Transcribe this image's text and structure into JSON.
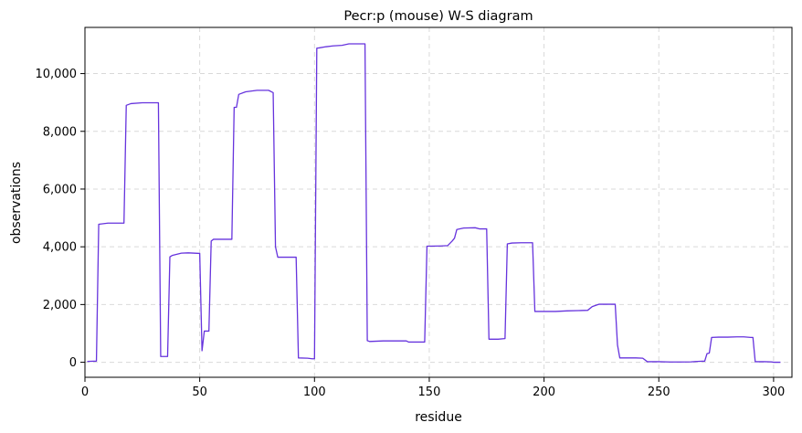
{
  "chart_data": {
    "type": "line",
    "title": "Pecr:p (mouse) W-S diagram",
    "xlabel": "residue",
    "ylabel": "observations",
    "xlim": [
      0,
      308
    ],
    "ylim": [
      -520,
      11600
    ],
    "xticks": [
      0,
      50,
      100,
      150,
      200,
      250,
      300
    ],
    "yticks": [
      0,
      2000,
      4000,
      6000,
      8000,
      10000
    ],
    "xtick_labels": [
      "0",
      "50",
      "100",
      "150",
      "200",
      "250",
      "300"
    ],
    "ytick_labels": [
      "0",
      "2,000",
      "4,000",
      "6,000",
      "8,000",
      "10,000"
    ],
    "grid": true,
    "line_color": "#6633dd",
    "series": [
      {
        "x": [
          1,
          5,
          6,
          10,
          17,
          18,
          20,
          25,
          32,
          33,
          36,
          37,
          38,
          42,
          45,
          50,
          51,
          52,
          54,
          55,
          56,
          60,
          64,
          65,
          66,
          67,
          70,
          75,
          80,
          82,
          83,
          84,
          89,
          92,
          93,
          97,
          99,
          100,
          101,
          102,
          105,
          108,
          112,
          115,
          120,
          122,
          123,
          124,
          130,
          140,
          141,
          148,
          149,
          155,
          158,
          160,
          161,
          162,
          165,
          170,
          172,
          175,
          176,
          180,
          183,
          184,
          186,
          190,
          195,
          196,
          200,
          205,
          210,
          215,
          219,
          221,
          224,
          230,
          231,
          232,
          233,
          240,
          243,
          245,
          250,
          255,
          260,
          264,
          267,
          270,
          271,
          272,
          273,
          276,
          280,
          284,
          287,
          290,
          291,
          292,
          296,
          299,
          300,
          303
        ],
        "y": [
          30,
          40,
          4780,
          4820,
          4820,
          8900,
          8960,
          8990,
          8990,
          200,
          200,
          3650,
          3700,
          3780,
          3790,
          3770,
          400,
          1080,
          1080,
          4200,
          4260,
          4260,
          4260,
          8830,
          8830,
          9280,
          9370,
          9420,
          9420,
          9340,
          4000,
          3640,
          3640,
          3640,
          150,
          140,
          120,
          120,
          10880,
          10890,
          10930,
          10960,
          10980,
          11030,
          11030,
          11030,
          750,
          720,
          740,
          740,
          700,
          700,
          4020,
          4030,
          4040,
          4200,
          4300,
          4600,
          4650,
          4660,
          4620,
          4620,
          800,
          800,
          820,
          4100,
          4130,
          4140,
          4140,
          1760,
          1760,
          1760,
          1780,
          1790,
          1800,
          1930,
          2010,
          2010,
          2010,
          600,
          150,
          150,
          140,
          20,
          20,
          10,
          10,
          15,
          30,
          40,
          300,
          320,
          860,
          870,
          870,
          880,
          880,
          860,
          860,
          20,
          20,
          15,
          0,
          0
        ]
      }
    ]
  }
}
